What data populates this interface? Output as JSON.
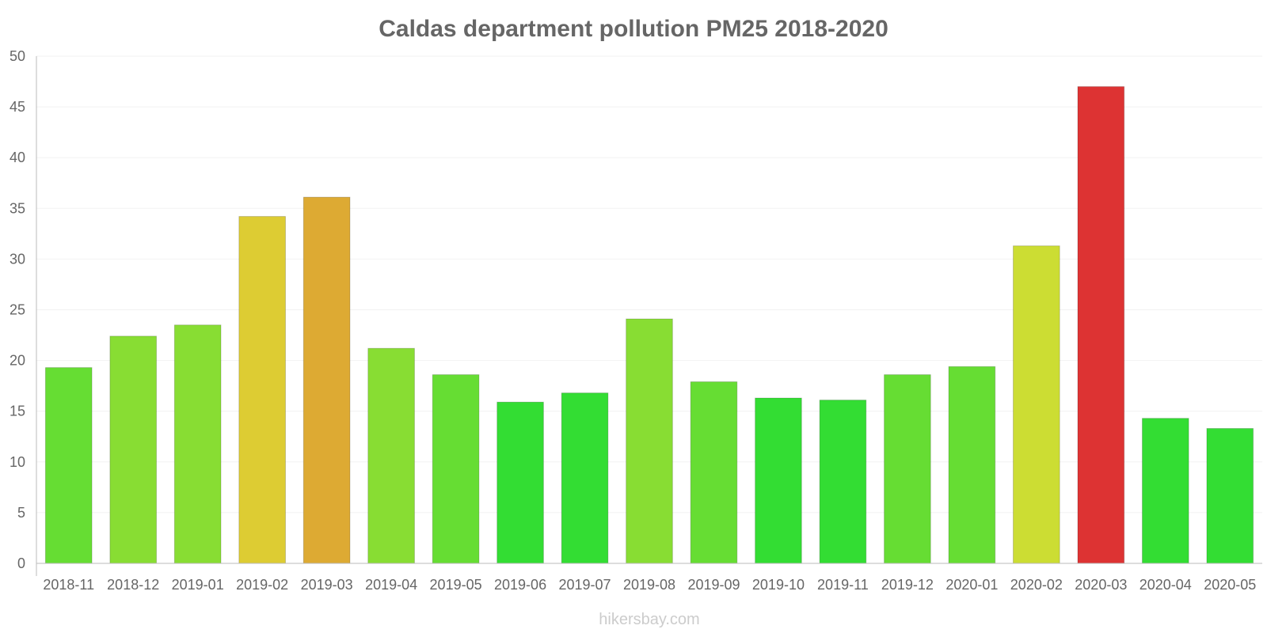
{
  "chart_data": {
    "type": "bar",
    "title": "Caldas department pollution PM25 2018-2020",
    "xlabel": "",
    "ylabel": "",
    "ylim": [
      0,
      50
    ],
    "yticks": [
      0,
      5,
      10,
      15,
      20,
      25,
      30,
      35,
      40,
      45,
      50
    ],
    "grid": true,
    "legend": "none",
    "categories": [
      "2018-11",
      "2018-12",
      "2019-01",
      "2019-02",
      "2019-03",
      "2019-04",
      "2019-05",
      "2019-06",
      "2019-07",
      "2019-08",
      "2019-09",
      "2019-10",
      "2019-11",
      "2019-12",
      "2020-01",
      "2020-02",
      "2020-03",
      "2020-04",
      "2020-05"
    ],
    "values": [
      19.3,
      22.4,
      23.5,
      34.2,
      36.1,
      21.2,
      18.6,
      15.9,
      16.8,
      24.1,
      17.9,
      16.3,
      16.1,
      18.6,
      19.4,
      31.3,
      47.0,
      14.3,
      13.3
    ],
    "colors": [
      "#66dd33",
      "#88dd33",
      "#88dd33",
      "#ddcc33",
      "#ddaa33",
      "#88dd33",
      "#66dd33",
      "#33dd33",
      "#33dd33",
      "#88dd33",
      "#66dd33",
      "#33dd33",
      "#33dd33",
      "#66dd33",
      "#66dd33",
      "#ccdd33",
      "#dd3333",
      "#33dd33",
      "#33dd33"
    ]
  },
  "watermark": "hikersbay.com"
}
